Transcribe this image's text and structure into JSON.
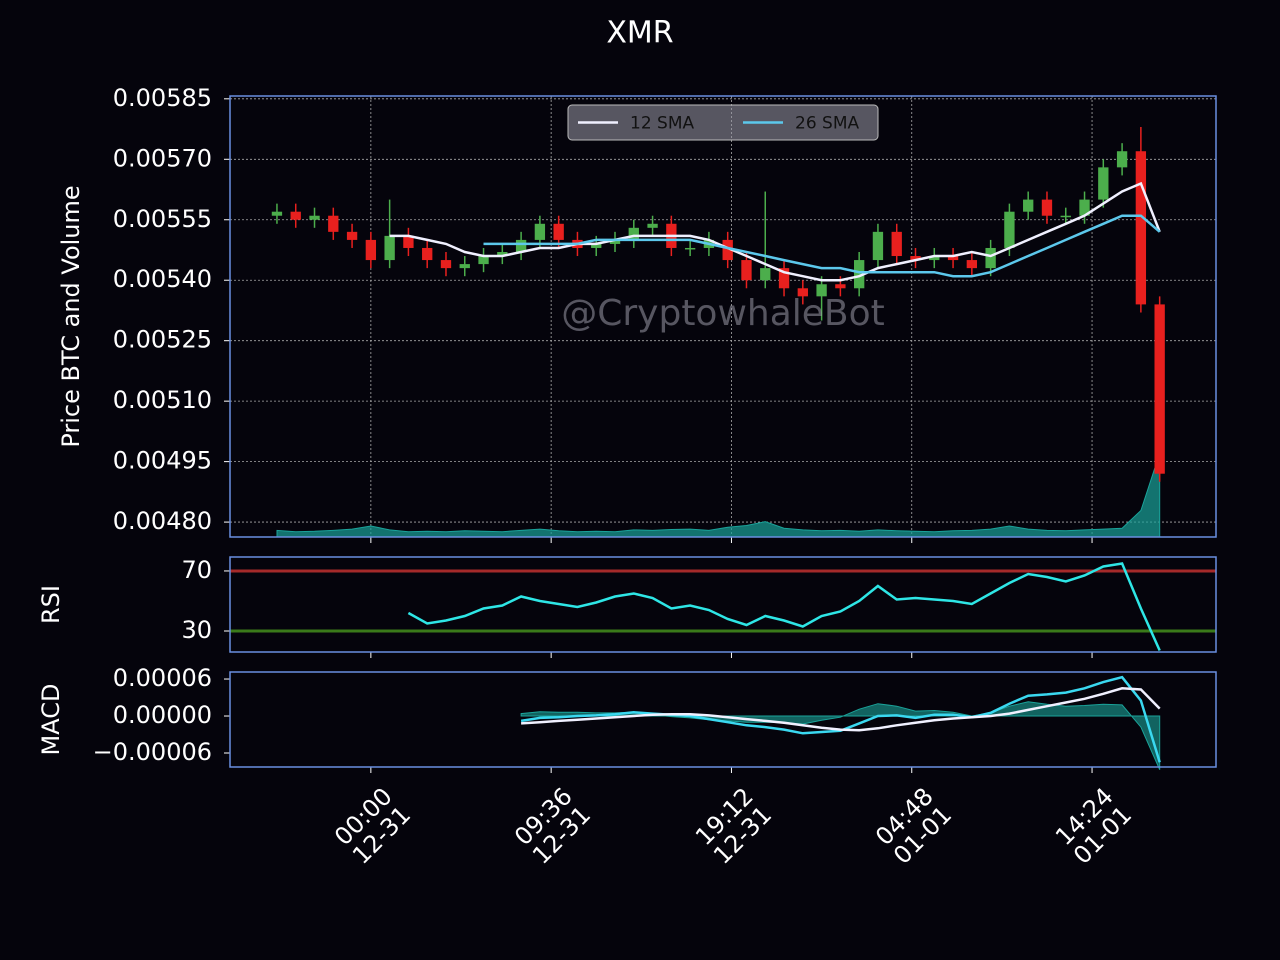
{
  "chart_data": [
    {
      "type": "candlestick",
      "title": "XMR",
      "y_label": "Price BTC and Volume",
      "watermark": "@CryptowhaleBot",
      "legend": "upper center",
      "grid": true,
      "up_color": "#4cae4c",
      "down_color": "#e8201e",
      "x": [
        -5,
        -4,
        -3,
        -2,
        -1,
        0,
        1,
        2,
        3,
        4,
        5,
        6,
        7,
        8,
        9,
        10,
        11,
        12,
        13,
        14,
        15,
        16,
        17,
        18,
        19,
        20,
        21,
        22,
        23,
        24,
        25,
        26,
        27,
        28,
        29,
        30,
        31,
        32,
        33,
        34,
        35,
        36,
        37,
        38,
        39,
        40,
        41,
        42
      ],
      "xlim": [
        -7.5,
        45
      ],
      "xticks": [
        {
          "value": 0,
          "label": "00:00\n12-31"
        },
        {
          "value": 9.6,
          "label": "09:36\n12-31"
        },
        {
          "value": 19.2,
          "label": "19:12\n12-31"
        },
        {
          "value": 28.8,
          "label": "04:48\n01-01"
        },
        {
          "value": 38.4,
          "label": "14:24\n01-01"
        }
      ],
      "open": [
        0.00556,
        0.00557,
        0.00555,
        0.00556,
        0.00552,
        0.0055,
        0.00545,
        0.00551,
        0.00548,
        0.00545,
        0.00543,
        0.00544,
        0.00546,
        0.00547,
        0.0055,
        0.00554,
        0.0055,
        0.00548,
        0.00549,
        0.0055,
        0.00553,
        0.00554,
        0.00548,
        0.00548,
        0.0055,
        0.00545,
        0.0054,
        0.00543,
        0.00538,
        0.00536,
        0.00539,
        0.00538,
        0.00545,
        0.00552,
        0.00546,
        0.00545,
        0.00546,
        0.00545,
        0.00543,
        0.00548,
        0.00557,
        0.0056,
        0.00556,
        0.00556,
        0.0056,
        0.00568,
        0.00572,
        0.00534
      ],
      "high": [
        0.00559,
        0.00559,
        0.00558,
        0.00558,
        0.00554,
        0.00552,
        0.0056,
        0.00553,
        0.0055,
        0.00547,
        0.00546,
        0.00548,
        0.00549,
        0.00552,
        0.00556,
        0.00556,
        0.00552,
        0.00551,
        0.00552,
        0.00555,
        0.00556,
        0.00556,
        0.0055,
        0.00552,
        0.00552,
        0.00547,
        0.00562,
        0.00545,
        0.0054,
        0.00541,
        0.00541,
        0.00547,
        0.00554,
        0.00554,
        0.00548,
        0.00548,
        0.00548,
        0.00547,
        0.0055,
        0.00559,
        0.00562,
        0.00562,
        0.00558,
        0.00562,
        0.0057,
        0.00574,
        0.00578,
        0.00536
      ],
      "low": [
        0.00554,
        0.00553,
        0.00553,
        0.0055,
        0.00548,
        0.00543,
        0.00543,
        0.00546,
        0.00543,
        0.00541,
        0.00541,
        0.00542,
        0.00544,
        0.00545,
        0.00548,
        0.00548,
        0.00546,
        0.00546,
        0.00547,
        0.00548,
        0.00551,
        0.00546,
        0.00546,
        0.00546,
        0.00543,
        0.00538,
        0.00538,
        0.00536,
        0.00534,
        0.0053,
        0.00536,
        0.00536,
        0.00543,
        0.00544,
        0.00543,
        0.00543,
        0.00543,
        0.00541,
        0.00541,
        0.00546,
        0.00555,
        0.00554,
        0.00554,
        0.00554,
        0.00558,
        0.00566,
        0.00532,
        0.0049
      ],
      "close": [
        0.00557,
        0.00555,
        0.00556,
        0.00552,
        0.0055,
        0.00545,
        0.00551,
        0.00548,
        0.00545,
        0.00543,
        0.00544,
        0.00546,
        0.00547,
        0.0055,
        0.00554,
        0.0055,
        0.00548,
        0.00549,
        0.0055,
        0.00553,
        0.00554,
        0.00548,
        0.00548,
        0.0055,
        0.00545,
        0.0054,
        0.00543,
        0.00538,
        0.00536,
        0.00539,
        0.00538,
        0.00545,
        0.00552,
        0.00546,
        0.00545,
        0.00546,
        0.00545,
        0.00543,
        0.00548,
        0.00557,
        0.0056,
        0.00556,
        0.00556,
        0.0056,
        0.00568,
        0.00572,
        0.00534,
        0.00492
      ],
      "series": [
        {
          "name": "12 SMA",
          "color": "#f0f0ff",
          "values": [
            null,
            null,
            null,
            null,
            null,
            null,
            0.00551,
            0.00551,
            0.0055,
            0.00549,
            0.00547,
            0.00546,
            0.00546,
            0.00547,
            0.00548,
            0.00548,
            0.00549,
            0.00549,
            0.0055,
            0.00551,
            0.00551,
            0.00551,
            0.00551,
            0.0055,
            0.00548,
            0.00546,
            0.00544,
            0.00542,
            0.00541,
            0.0054,
            0.0054,
            0.00541,
            0.00543,
            0.00544,
            0.00545,
            0.00546,
            0.00546,
            0.00547,
            0.00546,
            0.00548,
            0.0055,
            0.00552,
            0.00554,
            0.00556,
            0.00559,
            0.00562,
            0.00564,
            0.00552
          ]
        },
        {
          "name": "26 SMA",
          "color": "#5cc8ec",
          "values": [
            null,
            null,
            null,
            null,
            null,
            null,
            null,
            null,
            null,
            null,
            null,
            0.00549,
            0.00549,
            0.00549,
            0.00549,
            0.00549,
            0.00549,
            0.0055,
            0.0055,
            0.0055,
            0.0055,
            0.0055,
            0.0055,
            0.00549,
            0.00548,
            0.00547,
            0.00546,
            0.00545,
            0.00544,
            0.00543,
            0.00543,
            0.00542,
            0.00542,
            0.00542,
            0.00542,
            0.00542,
            0.00541,
            0.00541,
            0.00542,
            0.00544,
            0.00546,
            0.00548,
            0.0055,
            0.00552,
            0.00554,
            0.00556,
            0.00556,
            0.00552
          ]
        }
      ],
      "volume": {
        "color": "#1aa39a",
        "axis": "y2",
        "values": [
          1.5,
          1.2,
          1.3,
          1.5,
          1.8,
          2.5,
          1.6,
          1.2,
          1.3,
          1.2,
          1.4,
          1.3,
          1.2,
          1.5,
          1.8,
          1.4,
          1.2,
          1.3,
          1.2,
          1.6,
          1.5,
          1.7,
          1.8,
          1.5,
          2.2,
          2.6,
          3.5,
          2,
          1.6,
          1.4,
          1.5,
          1.3,
          1.6,
          1.4,
          1.3,
          1.2,
          1.4,
          1.5,
          1.8,
          2.5,
          1.8,
          1.5,
          1.4,
          1.6,
          1.8,
          2,
          6,
          19
        ]
      },
      "ylim": [
        0.004763,
        0.005857
      ],
      "yticks": [
        {
          "value": 0.00585,
          "label": "0.00585"
        },
        {
          "value": 0.0057,
          "label": "0.00570"
        },
        {
          "value": 0.00555,
          "label": "0.00555"
        },
        {
          "value": 0.0054,
          "label": "0.00540"
        },
        {
          "value": 0.00525,
          "label": "0.00525"
        },
        {
          "value": 0.0051,
          "label": "0.00510"
        },
        {
          "value": 0.00495,
          "label": "0.00495"
        },
        {
          "value": 0.0048,
          "label": "0.00480"
        }
      ],
      "y2lim": [
        0,
        100
      ]
    },
    {
      "type": "line",
      "y_label": "RSI",
      "color": "#2ee6e6",
      "values": [
        null,
        null,
        null,
        null,
        null,
        null,
        null,
        42,
        35,
        37,
        40,
        45,
        47,
        53,
        50,
        48,
        46,
        49,
        53,
        55,
        52,
        45,
        47,
        44,
        38,
        34,
        40,
        37,
        33,
        40,
        43,
        50,
        60,
        51,
        52,
        51,
        50,
        48,
        55,
        62,
        68,
        66,
        63,
        67,
        73,
        75,
        45,
        17
      ],
      "hlines": [
        {
          "value": 70,
          "color": "#a52a2a"
        },
        {
          "value": 30,
          "color": "#3a7a1a"
        }
      ],
      "ylim": [
        16,
        79.3
      ],
      "yticks": [
        30,
        70
      ]
    },
    {
      "type": "line",
      "y_label": "MACD",
      "series": [
        {
          "color": "#1aa39a",
          "kind": "area",
          "values": [
            null,
            null,
            null,
            null,
            null,
            null,
            null,
            null,
            null,
            null,
            null,
            null,
            null,
            4e-06,
            7e-06,
            6e-06,
            6e-06,
            5e-06,
            5e-06,
            6e-06,
            2e-06,
            -1e-06,
            -3e-06,
            -6e-06,
            -8e-06,
            -1e-05,
            -1e-05,
            -1.1e-05,
            -1.3e-05,
            -7e-06,
            -2e-06,
            1.1e-05,
            2e-05,
            1.6e-05,
            8e-06,
            9e-06,
            6e-06,
            0,
            5e-06,
            1.6e-05,
            2.3e-05,
            1.9e-05,
            1.6e-05,
            1.7e-05,
            1.9e-05,
            1.8e-05,
            -1.8e-05,
            -8.7e-05
          ]
        },
        {
          "color": "#3ad8f0",
          "values": [
            null,
            null,
            null,
            null,
            null,
            null,
            null,
            null,
            null,
            null,
            null,
            null,
            null,
            -8e-06,
            -3e-06,
            -2e-06,
            0,
            1e-06,
            3e-06,
            6e-06,
            4e-06,
            2e-06,
            0,
            -5e-06,
            -1e-05,
            -1.5e-05,
            -1.8e-05,
            -2.2e-05,
            -2.8e-05,
            -2.6e-05,
            -2.4e-05,
            -1.2e-05,
            0,
            1e-06,
            -3e-06,
            2e-06,
            2e-06,
            -2e-06,
            5e-06,
            2e-05,
            3.3e-05,
            3.5e-05,
            3.8e-05,
            4.5e-05,
            5.5e-05,
            6.3e-05,
            2.5e-05,
            -7.5e-05
          ]
        },
        {
          "color": "#f0f0ff",
          "values": [
            null,
            null,
            null,
            null,
            null,
            null,
            null,
            null,
            null,
            null,
            null,
            null,
            null,
            -1.2e-05,
            -1e-05,
            -8e-06,
            -6e-06,
            -4e-06,
            -2e-06,
            0,
            2e-06,
            3e-06,
            3e-06,
            1e-06,
            -2e-06,
            -5e-06,
            -8e-06,
            -1.1e-05,
            -1.5e-05,
            -1.9e-05,
            -2.2e-05,
            -2.3e-05,
            -2e-05,
            -1.5e-05,
            -1.1e-05,
            -7e-06,
            -4e-06,
            -2e-06,
            0,
            4e-06,
            1e-05,
            1.6e-05,
            2.2e-05,
            2.8e-05,
            3.6e-05,
            4.5e-05,
            4.3e-05,
            1.2e-05
          ]
        }
      ],
      "ylim": [
        -8.27e-05,
        7.14e-05
      ],
      "yticks": [
        {
          "value": 6e-05,
          "label": "0.00006"
        },
        {
          "value": 0,
          "label": "0.00000"
        },
        {
          "value": -6e-05,
          "label": "−0.00006"
        }
      ]
    }
  ]
}
